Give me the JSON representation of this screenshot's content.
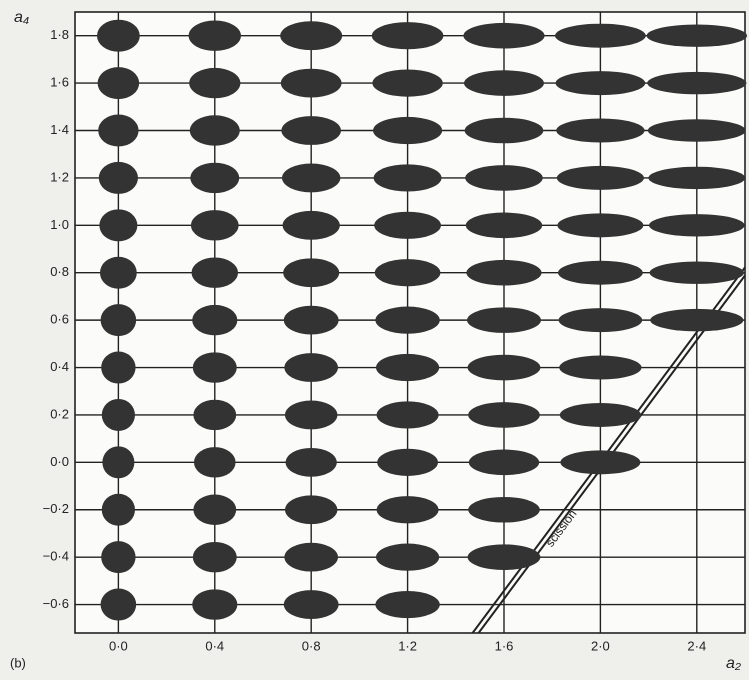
{
  "chart_data": {
    "type": "scatter",
    "panel_label": "(b)",
    "x_label": "a₂",
    "y_label": "a₄",
    "annotation": "scission",
    "xlim": [
      -0.18,
      2.6
    ],
    "ylim": [
      -0.72,
      1.9
    ],
    "xticks": [
      {
        "value": 0.0,
        "label": "0·0"
      },
      {
        "value": 0.4,
        "label": "0·4"
      },
      {
        "value": 0.8,
        "label": "0·8"
      },
      {
        "value": 1.2,
        "label": "1·2"
      },
      {
        "value": 1.6,
        "label": "1·6"
      },
      {
        "value": 2.0,
        "label": "2·0"
      },
      {
        "value": 2.4,
        "label": "2·4"
      }
    ],
    "yticks": [
      {
        "value": 1.8,
        "label": "1·8"
      },
      {
        "value": 1.6,
        "label": "1·6"
      },
      {
        "value": 1.4,
        "label": "1·4"
      },
      {
        "value": 1.2,
        "label": "1·2"
      },
      {
        "value": 1.0,
        "label": "1·0"
      },
      {
        "value": 0.8,
        "label": "0·8"
      },
      {
        "value": 0.6,
        "label": "0·6"
      },
      {
        "value": 0.4,
        "label": "0·4"
      },
      {
        "value": 0.2,
        "label": "0·2"
      },
      {
        "value": 0.0,
        "label": "0·0"
      },
      {
        "value": -0.2,
        "label": "−0·2"
      },
      {
        "value": -0.4,
        "label": "−0·4"
      },
      {
        "value": -0.6,
        "label": "−0·6"
      }
    ],
    "grid": true,
    "x": [
      0.0,
      0.4,
      0.8,
      1.2,
      1.6,
      2.0,
      2.4,
      0.0,
      0.4,
      0.8,
      1.2,
      1.6,
      2.0,
      2.4,
      0.0,
      0.4,
      0.8,
      1.2,
      1.6,
      2.0,
      2.4,
      0.0,
      0.4,
      0.8,
      1.2,
      1.6,
      2.0,
      2.4,
      0.0,
      0.4,
      0.8,
      1.2,
      1.6,
      2.0,
      2.4,
      0.0,
      0.4,
      0.8,
      1.2,
      1.6,
      2.0,
      2.4,
      0.0,
      0.4,
      0.8,
      1.2,
      1.6,
      2.0,
      2.4,
      0.0,
      0.4,
      0.8,
      1.2,
      1.6,
      2.0,
      0.0,
      0.4,
      0.8,
      1.2,
      1.6,
      2.0,
      0.0,
      0.4,
      0.8,
      1.2,
      1.6,
      2.0,
      0.0,
      0.4,
      0.8,
      1.2,
      1.6,
      0.0,
      0.4,
      0.8,
      1.2,
      1.6,
      0.0,
      0.4,
      0.8,
      1.2
    ],
    "series": [
      {
        "color": "#333333",
        "values": [
          1.8,
          1.8,
          1.8,
          1.8,
          1.8,
          1.8,
          1.8,
          1.6,
          1.6,
          1.6,
          1.6,
          1.6,
          1.6,
          1.6,
          1.4,
          1.4,
          1.4,
          1.4,
          1.4,
          1.4,
          1.4,
          1.2,
          1.2,
          1.2,
          1.2,
          1.2,
          1.2,
          1.2,
          1.0,
          1.0,
          1.0,
          1.0,
          1.0,
          1.0,
          1.0,
          0.8,
          0.8,
          0.8,
          0.8,
          0.8,
          0.8,
          0.8,
          0.6,
          0.6,
          0.6,
          0.6,
          0.6,
          0.6,
          0.6,
          0.4,
          0.4,
          0.4,
          0.4,
          0.4,
          0.4,
          0.2,
          0.2,
          0.2,
          0.2,
          0.2,
          0.2,
          0.0,
          0.0,
          0.0,
          0.0,
          0.0,
          0.0,
          -0.2,
          -0.2,
          -0.2,
          -0.2,
          -0.2,
          -0.4,
          -0.4,
          -0.4,
          -0.4,
          -0.4,
          -0.6,
          -0.6,
          -0.6,
          -0.6
        ]
      }
    ]
  }
}
